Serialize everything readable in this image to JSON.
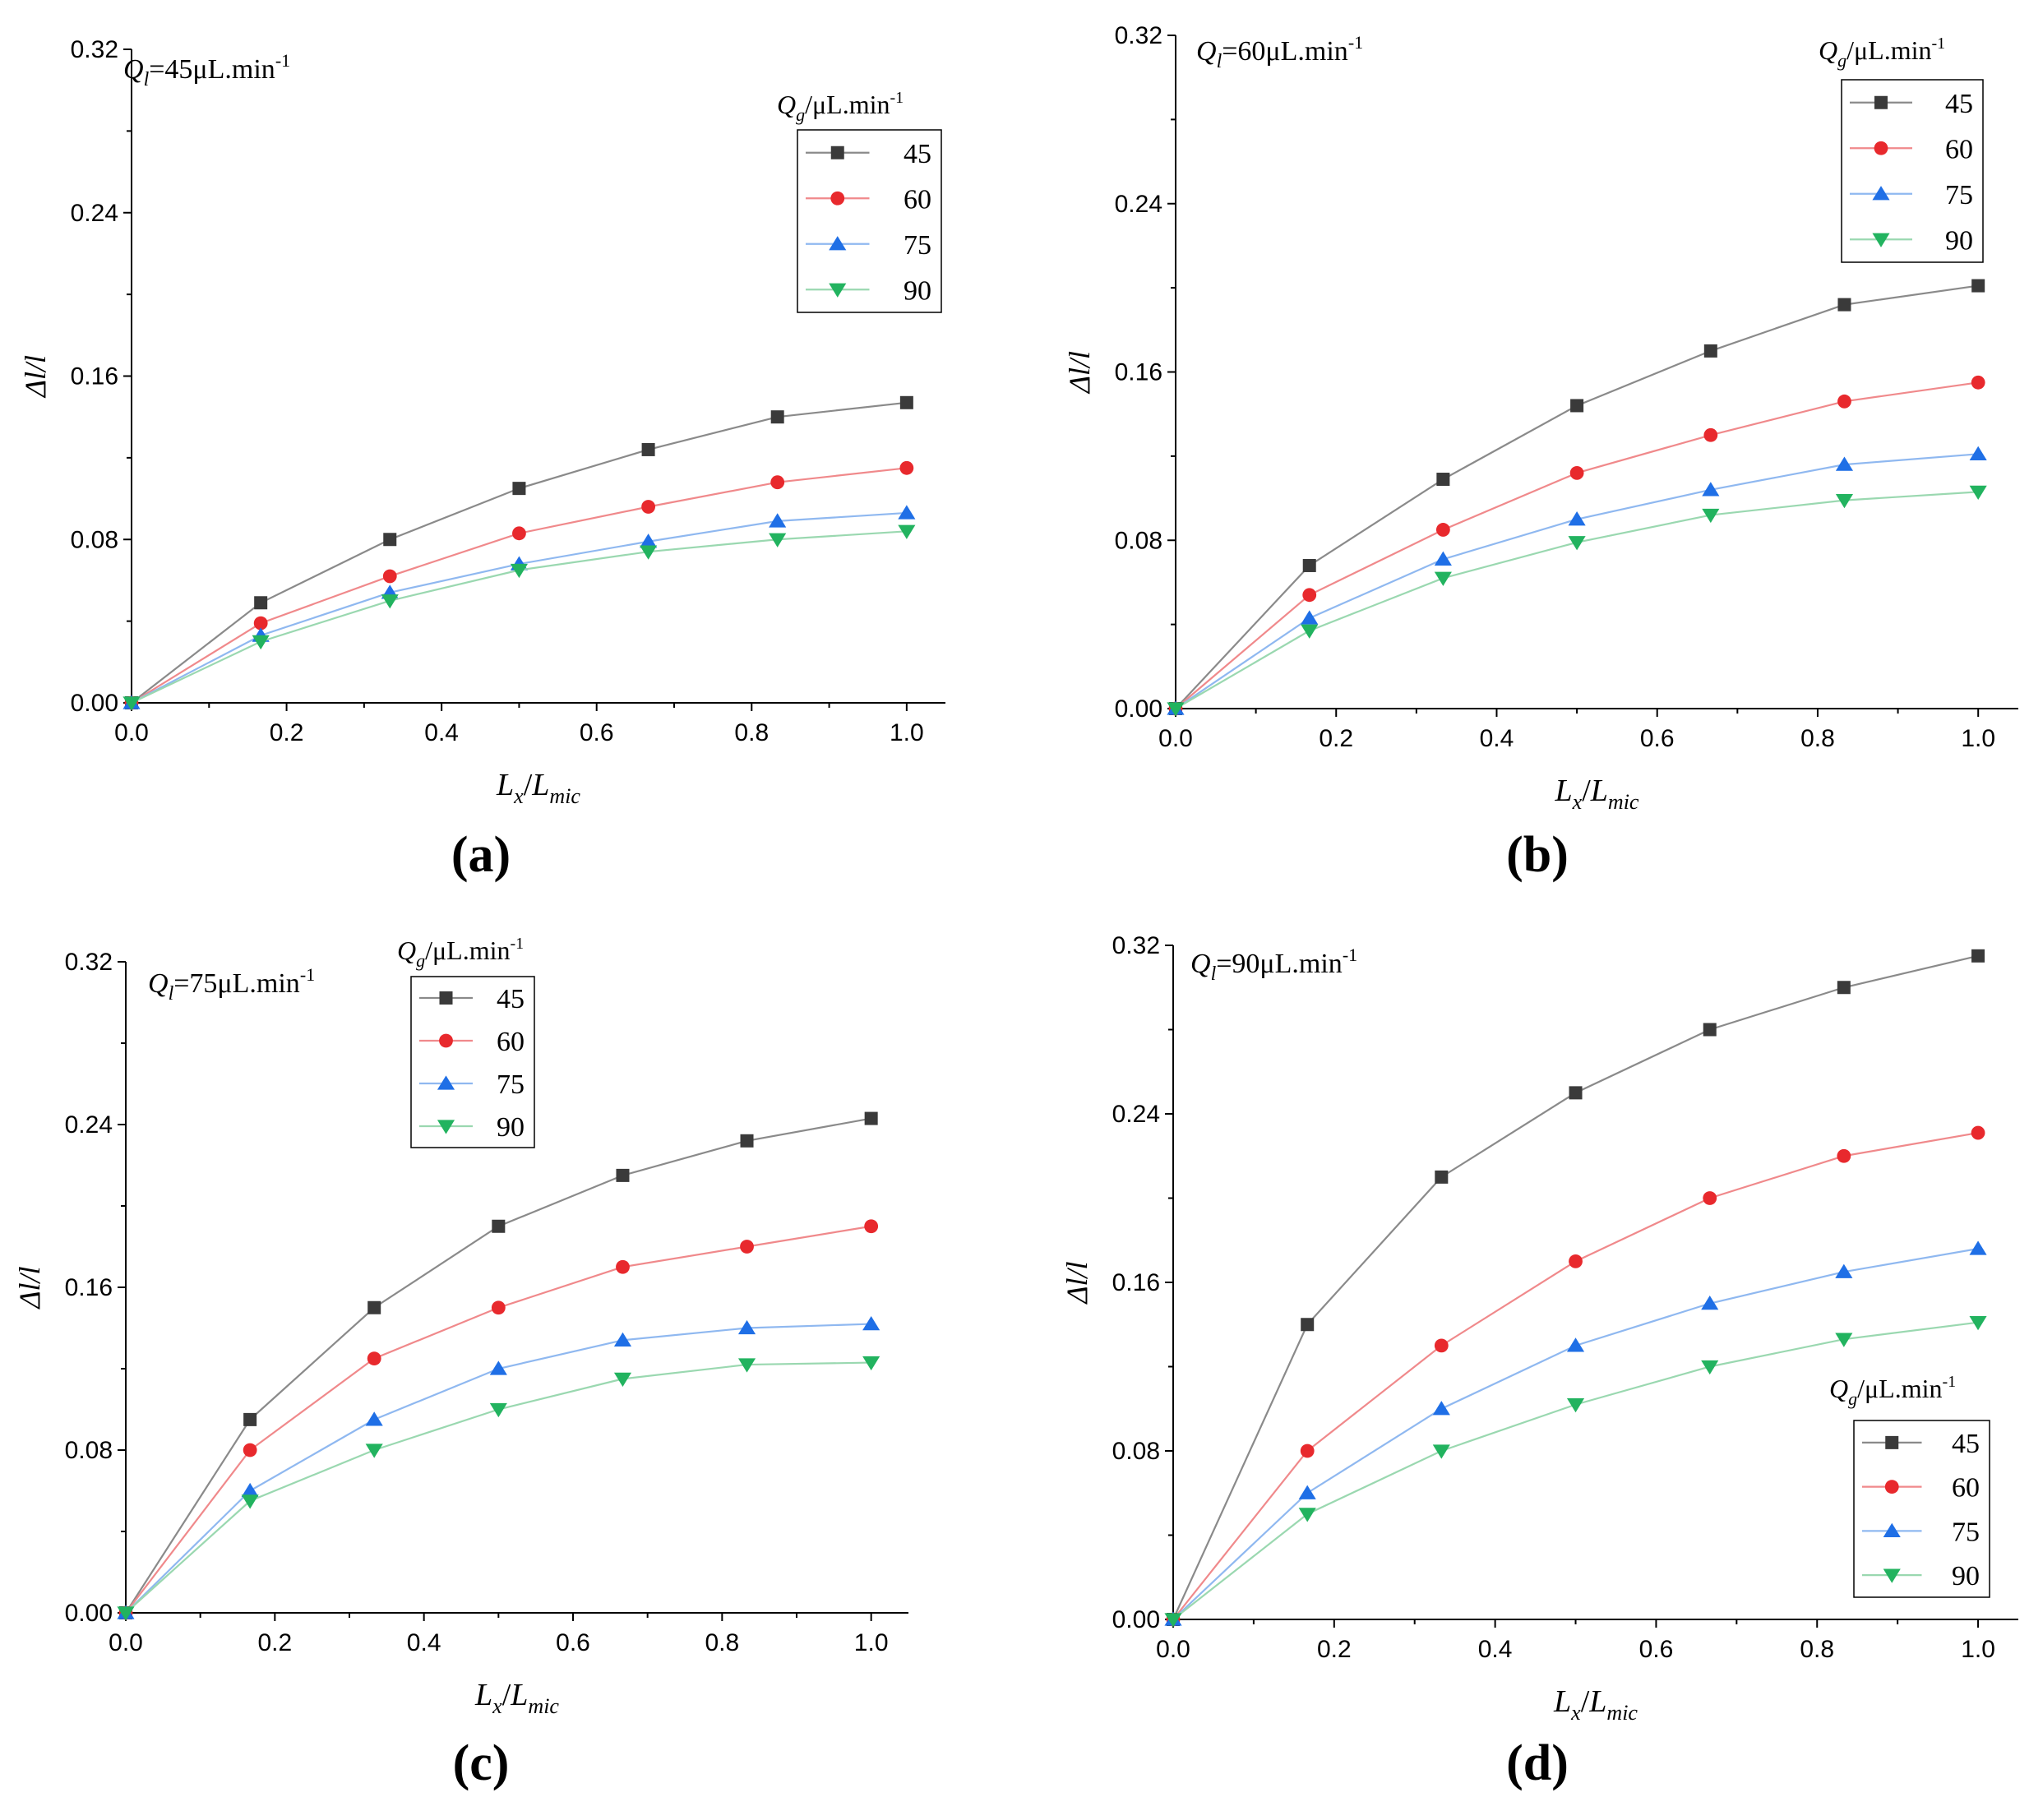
{
  "colors": {
    "45": "#3a3a3a",
    "60": "#e8292d",
    "75": "#1f6fe6",
    "90": "#22b35f"
  },
  "line_colors": {
    "45": "#8a8a8a",
    "60": "#f0898b",
    "75": "#8fb8f0",
    "90": "#9ad8b0"
  },
  "chart_data": [
    {
      "panel_label": "(a)",
      "type": "line",
      "annotation": {
        "symbol": "Q",
        "sub": "l",
        "text": "=45μL.min",
        "sup": "-1"
      },
      "legend_title": {
        "symbol": "Q",
        "sub": "g",
        "text": "/μL.min",
        "sup": "-1"
      },
      "legend_position": "top-right",
      "xlabel": {
        "symbol": "L",
        "sub": "x",
        "mid": "/",
        "symbol2": "L",
        "sub2": "mic"
      },
      "ylabel": "Δl/l",
      "xlim": [
        0,
        1.05
      ],
      "ylim": [
        0,
        0.32
      ],
      "xticks": [
        "0.0",
        "0.2",
        "0.4",
        "0.6",
        "0.8",
        "1.0"
      ],
      "yticks": [
        "0.00",
        "0.08",
        "0.16",
        "0.24",
        "0.32"
      ],
      "x": [
        0,
        0.1667,
        0.3333,
        0.5,
        0.6667,
        0.8333,
        1.0
      ],
      "series": [
        {
          "name": "45",
          "marker": "square",
          "values": [
            0,
            0.049,
            0.08,
            0.105,
            0.124,
            0.14,
            0.147
          ]
        },
        {
          "name": "60",
          "marker": "circle",
          "values": [
            0,
            0.039,
            0.062,
            0.083,
            0.096,
            0.108,
            0.115
          ]
        },
        {
          "name": "75",
          "marker": "triangle-up",
          "values": [
            0,
            0.033,
            0.054,
            0.068,
            0.079,
            0.089,
            0.093
          ]
        },
        {
          "name": "90",
          "marker": "triangle-down",
          "values": [
            0,
            0.03,
            0.05,
            0.065,
            0.074,
            0.08,
            0.084
          ]
        }
      ]
    },
    {
      "panel_label": "(b)",
      "type": "line",
      "annotation": {
        "symbol": "Q",
        "sub": "l",
        "text": "=60μL.min",
        "sup": "-1"
      },
      "legend_title": {
        "symbol": "Q",
        "sub": "g",
        "text": "/μL.min",
        "sup": "-1"
      },
      "legend_position": "top-right",
      "xlabel": {
        "symbol": "L",
        "sub": "x",
        "mid": "/",
        "symbol2": "L",
        "sub2": "mic"
      },
      "ylabel": "Δl/l",
      "xlim": [
        0,
        1.05
      ],
      "ylim": [
        0,
        0.32
      ],
      "xticks": [
        "0.0",
        "0.2",
        "0.4",
        "0.6",
        "0.8",
        "1.0"
      ],
      "yticks": [
        "0.00",
        "0.08",
        "0.16",
        "0.24",
        "0.32"
      ],
      "x": [
        0,
        0.1667,
        0.3333,
        0.5,
        0.6667,
        0.8333,
        1.0
      ],
      "series": [
        {
          "name": "45",
          "marker": "square",
          "values": [
            0,
            0.068,
            0.109,
            0.144,
            0.17,
            0.192,
            0.201
          ]
        },
        {
          "name": "60",
          "marker": "circle",
          "values": [
            0,
            0.054,
            0.085,
            0.112,
            0.13,
            0.146,
            0.155
          ]
        },
        {
          "name": "75",
          "marker": "triangle-up",
          "values": [
            0,
            0.043,
            0.071,
            0.09,
            0.104,
            0.116,
            0.121
          ]
        },
        {
          "name": "90",
          "marker": "triangle-down",
          "values": [
            0,
            0.037,
            0.062,
            0.079,
            0.092,
            0.099,
            0.103
          ]
        }
      ]
    },
    {
      "panel_label": "(c)",
      "type": "line",
      "annotation": {
        "symbol": "Q",
        "sub": "l",
        "text": "=75μL.min",
        "sup": "-1"
      },
      "legend_title": {
        "symbol": "Q",
        "sub": "g",
        "text": "/μL.min",
        "sup": "-1"
      },
      "legend_position": "top-center",
      "xlabel": {
        "symbol": "L",
        "sub": "x",
        "mid": "/",
        "symbol2": "L",
        "sub2": "mic"
      },
      "ylabel": "Δl/l",
      "xlim": [
        0,
        1.05
      ],
      "ylim": [
        0,
        0.32
      ],
      "xticks": [
        "0.0",
        "0.2",
        "0.4",
        "0.6",
        "0.8",
        "1.0"
      ],
      "yticks": [
        "0.00",
        "0.08",
        "0.16",
        "0.24",
        "0.32"
      ],
      "x": [
        0,
        0.1667,
        0.3333,
        0.5,
        0.6667,
        0.8333,
        1.0
      ],
      "series": [
        {
          "name": "45",
          "marker": "square",
          "values": [
            0,
            0.095,
            0.15,
            0.19,
            0.215,
            0.232,
            0.243
          ]
        },
        {
          "name": "60",
          "marker": "circle",
          "values": [
            0,
            0.08,
            0.125,
            0.15,
            0.17,
            0.18,
            0.19
          ]
        },
        {
          "name": "75",
          "marker": "triangle-up",
          "values": [
            0,
            0.06,
            0.095,
            0.12,
            0.134,
            0.14,
            0.142
          ]
        },
        {
          "name": "90",
          "marker": "triangle-down",
          "values": [
            0,
            0.055,
            0.08,
            0.1,
            0.115,
            0.122,
            0.123
          ]
        }
      ]
    },
    {
      "panel_label": "(d)",
      "type": "line",
      "annotation": {
        "symbol": "Q",
        "sub": "l",
        "text": "=90μL.min",
        "sup": "-1"
      },
      "legend_title": {
        "symbol": "Q",
        "sub": "g",
        "text": "/μL.min",
        "sup": "-1"
      },
      "legend_position": "bottom-right",
      "xlabel": {
        "symbol": "L",
        "sub": "x",
        "mid": "/",
        "symbol2": "L",
        "sub2": "mic"
      },
      "ylabel": "Δl/l",
      "xlim": [
        0,
        1.05
      ],
      "ylim": [
        0,
        0.32
      ],
      "xticks": [
        "0.0",
        "0.2",
        "0.4",
        "0.6",
        "0.8",
        "1.0"
      ],
      "yticks": [
        "0.00",
        "0.08",
        "0.16",
        "0.24",
        "0.32"
      ],
      "x": [
        0,
        0.1667,
        0.3333,
        0.5,
        0.6667,
        0.8333,
        1.0
      ],
      "series": [
        {
          "name": "45",
          "marker": "square",
          "values": [
            0,
            0.14,
            0.21,
            0.25,
            0.28,
            0.3,
            0.315
          ]
        },
        {
          "name": "60",
          "marker": "circle",
          "values": [
            0,
            0.08,
            0.13,
            0.17,
            0.2,
            0.22,
            0.231
          ]
        },
        {
          "name": "75",
          "marker": "triangle-up",
          "values": [
            0,
            0.06,
            0.1,
            0.13,
            0.15,
            0.165,
            0.176
          ]
        },
        {
          "name": "90",
          "marker": "triangle-down",
          "values": [
            0,
            0.05,
            0.08,
            0.102,
            0.12,
            0.133,
            0.141
          ]
        }
      ]
    }
  ]
}
